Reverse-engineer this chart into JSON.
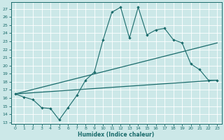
{
  "xlabel": "Humidex (Indice chaleur)",
  "bg_color": "#cce8e8",
  "line_color": "#1a6b6b",
  "grid_color": "#b8d8d8",
  "xlim": [
    -0.5,
    23.5
  ],
  "ylim": [
    12.8,
    27.8
  ],
  "yticks": [
    13,
    14,
    15,
    16,
    17,
    18,
    19,
    20,
    21,
    22,
    23,
    24,
    25,
    26,
    27
  ],
  "xticks": [
    0,
    1,
    2,
    3,
    4,
    5,
    6,
    7,
    8,
    9,
    10,
    11,
    12,
    13,
    14,
    15,
    16,
    17,
    18,
    19,
    20,
    21,
    22,
    23
  ],
  "line1_x": [
    0,
    1,
    2,
    3,
    4,
    5,
    6,
    7,
    8,
    9,
    10,
    11,
    12,
    13,
    14,
    15,
    16,
    17,
    18,
    19,
    20,
    21,
    22,
    23
  ],
  "line1_y": [
    16.5,
    16.1,
    15.8,
    14.8,
    14.7,
    13.3,
    14.8,
    16.3,
    18.2,
    19.2,
    23.2,
    26.6,
    27.2,
    23.4,
    27.2,
    23.8,
    24.4,
    24.6,
    23.2,
    22.8,
    20.2,
    19.5,
    18.2,
    18.2
  ],
  "line2_x": [
    0,
    23
  ],
  "line2_y": [
    16.5,
    22.8
  ],
  "line3_x": [
    0,
    23
  ],
  "line3_y": [
    16.5,
    18.2
  ]
}
